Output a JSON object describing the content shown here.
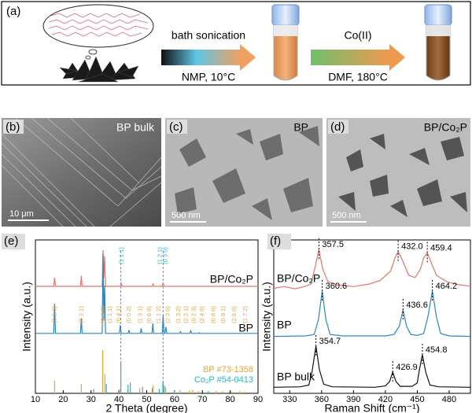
{
  "panel_a": {
    "label": "(a)",
    "step1_top": "bath sonication",
    "step1_bottom": "NMP, 10°C",
    "step2_top": "Co(II)",
    "step2_bottom": "DMF,  180°C"
  },
  "micrographs": [
    {
      "label": "(b)",
      "caption": "BP bulk",
      "scale_bar": "10 μm"
    },
    {
      "label": "(c)",
      "caption": "BP",
      "scale_bar": "500 nm"
    },
    {
      "label": "(d)",
      "caption": "BP/Co₂P",
      "scale_bar": "500 nm"
    }
  ],
  "chart_data": [
    {
      "type": "line",
      "label": "(e)",
      "xlabel": "2 Theta (degree)",
      "ylabel": "Intensity (a.u.)",
      "xlim": [
        10,
        90
      ],
      "xticks": [
        10,
        20,
        30,
        40,
        50,
        60,
        70,
        80,
        90
      ],
      "series": [
        {
          "name": "BP/Co₂P",
          "color": "#e8756a",
          "x": [
            10,
            16.6,
            16.9,
            17.2,
            26.2,
            26.5,
            26.8,
            34.0,
            34.3,
            34.6,
            34.9,
            35.2,
            40.5,
            40.8,
            41.1,
            52.0,
            52.3,
            52.6,
            55.6,
            55.9,
            56.2,
            90
          ],
          "values": [
            8,
            8,
            30,
            8,
            8,
            35,
            8,
            8,
            100,
            30,
            85,
            8,
            8,
            16,
            8,
            8,
            14,
            8,
            8,
            18,
            8,
            8
          ]
        },
        {
          "name": "BP",
          "color": "#2e86c1",
          "x": [
            10,
            16.6,
            16.9,
            17.2,
            26.2,
            26.5,
            26.8,
            34.0,
            34.3,
            34.6,
            34.9,
            35.2,
            40.2,
            40.5,
            40.8,
            43.3,
            43.6,
            43.9,
            47.7,
            48.0,
            48.3,
            51.9,
            52.2,
            52.5,
            55.6,
            55.9,
            56.2,
            56.6,
            56.9,
            57.2,
            61.8,
            62.1,
            62.4,
            65.5,
            65.8,
            66.1,
            68.6,
            68.9,
            69.2,
            90
          ],
          "values": [
            4,
            4,
            40,
            4,
            4,
            22,
            4,
            4,
            100,
            20,
            62,
            4,
            4,
            14,
            4,
            4,
            8,
            4,
            4,
            10,
            4,
            4,
            16,
            4,
            4,
            26,
            4,
            4,
            12,
            4,
            4,
            6,
            4,
            4,
            7,
            4,
            4,
            5,
            4,
            4
          ]
        }
      ],
      "references": [
        {
          "name": "BP #73-1358",
          "color": "#e8a33a",
          "x": [
            16.9,
            26.5,
            34.2,
            35.0,
            40.2,
            43.2,
            47.5,
            52.3,
            55.9,
            56.8,
            60.0,
            62.0,
            65.3,
            66.5,
            68.6,
            72.5,
            75.0,
            77.2,
            80.5,
            83.5,
            85.0,
            88.0
          ],
          "values": [
            30,
            22,
            100,
            45,
            10,
            8,
            12,
            18,
            28,
            14,
            6,
            8,
            6,
            8,
            5,
            4,
            6,
            5,
            4,
            5,
            4,
            3
          ]
        },
        {
          "name": "Co₂P #54-0413",
          "color": "#25b5c9",
          "x": [
            31.0,
            35.5,
            40.7,
            43.3,
            44.1,
            48.5,
            52.0,
            54.5,
            55.8,
            56.3,
            60.0,
            72.0
          ],
          "values": [
            10,
            22,
            70,
            20,
            25,
            15,
            12,
            10,
            25,
            18,
            6,
            5
          ]
        }
      ],
      "guide_lines": [
        40.7,
        55.9
      ],
      "co2p_planes": [
        {
          "x": 41,
          "label": "(1 1 1)"
        },
        {
          "x": 54.8,
          "label": "(1 2 1)"
        },
        {
          "x": 56.8,
          "label": "(0 3 0)"
        }
      ],
      "bp_planes": [
        {
          "x": 17,
          "label": "(0 2 0)"
        },
        {
          "x": 26.5,
          "label": "(0 2 1)"
        },
        {
          "x": 34.3,
          "label": "(0 4 0)"
        },
        {
          "x": 36.8,
          "label": "(1 1 1)"
        },
        {
          "x": 40,
          "label": "(0 4 1)"
        },
        {
          "x": 43.6,
          "label": "(0 0 2)"
        },
        {
          "x": 47.8,
          "label": "(1 3 1)"
        },
        {
          "x": 51,
          "label": "(0 6 0)"
        },
        {
          "x": 54.4,
          "label": "(1 1 2)"
        },
        {
          "x": 57.6,
          "label": "(2 3 0)"
        },
        {
          "x": 61.4,
          "label": "(1 3 2)"
        },
        {
          "x": 64.2,
          "label": "(2 2 1)"
        },
        {
          "x": 67,
          "label": "(0 2 3)"
        },
        {
          "x": 70,
          "label": "(2 4 0)"
        },
        {
          "x": 74,
          "label": "(0 8 0)"
        },
        {
          "x": 77.5,
          "label": "(0 8 1)"
        },
        {
          "x": 81.5,
          "label": "(2 6 0)"
        },
        {
          "x": 85.5,
          "label": "(1 7 2)"
        }
      ]
    },
    {
      "type": "line",
      "label": "(f)",
      "xlabel": "Raman Shift (cm⁻¹)",
      "ylabel": "Intensity (a.u.)",
      "xlim": [
        315,
        500
      ],
      "xticks": [
        330,
        360,
        390,
        420,
        450,
        480
      ],
      "series": [
        {
          "name": "BP/Co₂P",
          "color": "#e8756a",
          "x": [
            315,
            325,
            335,
            345,
            350,
            354,
            357.5,
            361,
            366,
            375,
            390,
            405,
            415,
            425,
            429,
            432.0,
            436,
            442,
            448,
            453,
            456,
            459.4,
            463,
            468,
            478,
            490,
            500
          ],
          "values": [
            10,
            14,
            9,
            15,
            20,
            60,
            100,
            55,
            25,
            18,
            14,
            20,
            28,
            50,
            80,
            95,
            75,
            40,
            35,
            55,
            80,
            92,
            70,
            40,
            25,
            18,
            15
          ],
          "peaks": [
            357.5,
            432.0,
            459.4
          ],
          "peak_labels": [
            "357.5",
            "432.0",
            "459.4"
          ]
        },
        {
          "name": "BP",
          "color": "#2e86c1",
          "x": [
            315,
            345,
            353,
            357,
            360.6,
            364,
            368,
            380,
            420,
            428,
            433,
            436.6,
            440,
            444,
            450,
            456,
            460,
            464.2,
            468,
            472,
            480,
            500
          ],
          "values": [
            4,
            5,
            8,
            40,
            100,
            40,
            8,
            5,
            5,
            8,
            25,
            60,
            25,
            8,
            6,
            10,
            45,
            100,
            45,
            10,
            5,
            4
          ],
          "peaks": [
            360.6,
            436.6,
            464.2
          ],
          "peak_labels": [
            "360.6",
            "436.6",
            "464.2"
          ]
        },
        {
          "name": "BP bulk",
          "color": "#111111",
          "x": [
            315,
            340,
            348,
            351,
            354.7,
            358,
            362,
            370,
            410,
            420,
            424,
            426.9,
            430,
            434,
            445,
            450,
            452,
            454.8,
            458,
            462,
            470,
            500
          ],
          "values": [
            5,
            6,
            10,
            40,
            100,
            45,
            12,
            6,
            5,
            8,
            18,
            40,
            18,
            7,
            7,
            15,
            45,
            80,
            40,
            10,
            6,
            5
          ],
          "peaks": [
            354.7,
            426.9,
            454.8
          ],
          "peak_labels": [
            "354.7",
            "426.9",
            "454.8"
          ]
        }
      ]
    }
  ]
}
